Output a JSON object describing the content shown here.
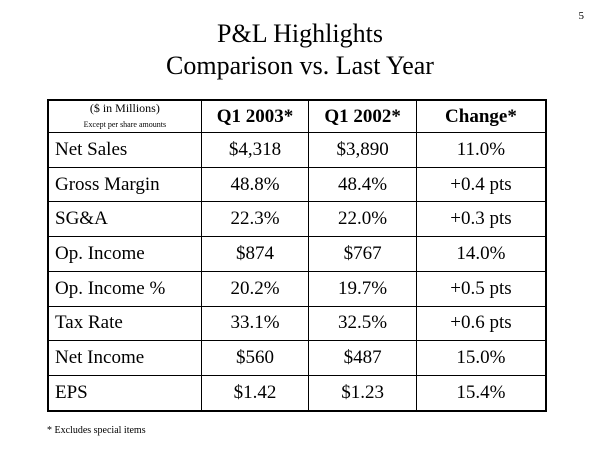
{
  "page_number": "5",
  "title_line1": "P&L Highlights",
  "title_line2": "Comparison vs. Last Year",
  "table": {
    "units_label": "($ in Millions)",
    "units_sublabel": "Except per share amounts",
    "headers": [
      "Q1 2003*",
      "Q1 2002*",
      "Change*"
    ],
    "rows": [
      {
        "label": "Net Sales",
        "values": [
          "$4,318",
          "$3,890",
          "11.0%"
        ]
      },
      {
        "label": "Gross Margin",
        "values": [
          "48.8%",
          "48.4%",
          "+0.4 pts"
        ]
      },
      {
        "label": "SG&A",
        "values": [
          "22.3%",
          "22.0%",
          "+0.3 pts"
        ]
      },
      {
        "label": "Op. Income",
        "values": [
          "$874",
          "$767",
          "14.0%"
        ]
      },
      {
        "label": "Op. Income %",
        "values": [
          "20.2%",
          "19.7%",
          "+0.5 pts"
        ]
      },
      {
        "label": "Tax Rate",
        "values": [
          "33.1%",
          "32.5%",
          "+0.6 pts"
        ]
      },
      {
        "label": "Net Income",
        "values": [
          "$560",
          "$487",
          "15.0%"
        ]
      },
      {
        "label": "EPS",
        "values": [
          "$1.42",
          "$1.23",
          "15.4%"
        ]
      }
    ]
  },
  "footnote": "* Excludes special items"
}
